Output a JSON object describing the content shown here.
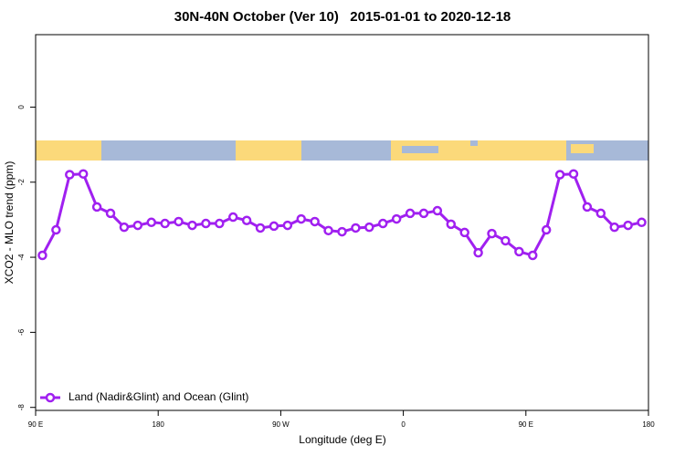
{
  "chart_data": {
    "type": "line",
    "title": "30N-40N October (Ver 10)   2015-01-01 to 2020-12-18",
    "x_label": "Longitude (deg E)",
    "y_label": "XCO2 - MLO trend (ppm)",
    "x": [
      95,
      105,
      115,
      125,
      135,
      145,
      155,
      165,
      175,
      185,
      195,
      205,
      215,
      225,
      235,
      245,
      255,
      265,
      275,
      285,
      295,
      305,
      315,
      325,
      335,
      345,
      355,
      365,
      375,
      385,
      395,
      405,
      415,
      425,
      435,
      445,
      455,
      465,
      475,
      485,
      495,
      505,
      515,
      525,
      535
    ],
    "series": [
      {
        "name": "Land (Nadir&Glint) and Ocean (Glint)",
        "color": "#a020f0",
        "values": [
          -3.95,
          -3.27,
          -1.8,
          -1.78,
          -2.66,
          -2.83,
          -3.2,
          -3.15,
          -3.07,
          -3.1,
          -3.05,
          -3.15,
          -3.1,
          -3.1,
          -2.93,
          -3.02,
          -3.22,
          -3.17,
          -3.15,
          -2.98,
          -3.05,
          -3.29,
          -3.32,
          -3.22,
          -3.2,
          -3.1,
          -2.98,
          -2.83,
          -2.83,
          -2.76,
          -3.12,
          -3.34,
          -3.88,
          -3.37,
          -3.56,
          -3.85,
          -3.95,
          -3.27,
          -1.8,
          -1.78,
          -2.66,
          -2.83,
          -3.2,
          -3.15,
          -3.07
        ]
      }
    ],
    "xlim": [
      90,
      540
    ],
    "xticks": [
      {
        "value": 90,
        "label": "90 E"
      },
      {
        "value": 180,
        "label": "180"
      },
      {
        "value": 270,
        "label": "90 W"
      },
      {
        "value": 360,
        "label": "0"
      },
      {
        "value": 450,
        "label": "90 E"
      },
      {
        "value": 540,
        "label": "180"
      }
    ],
    "ylim": [
      -8.08,
      1.93
    ],
    "yticks": [
      0,
      -2,
      -4,
      -6,
      -8
    ],
    "legend": "lower left"
  }
}
